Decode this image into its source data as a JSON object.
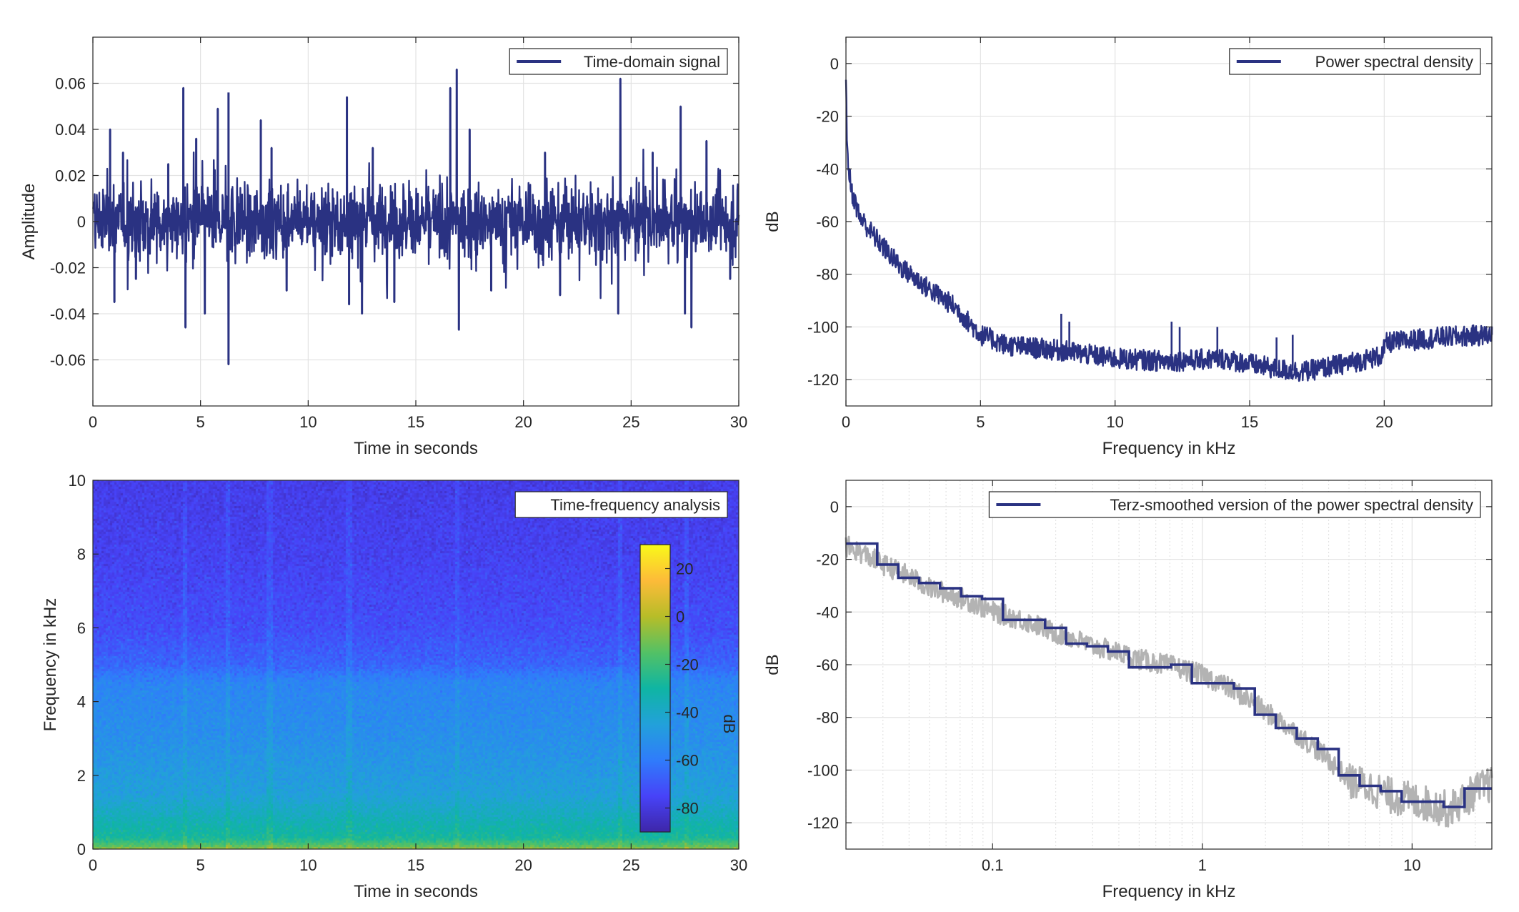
{
  "chart_data": [
    {
      "type": "line",
      "legend": "Time-domain signal",
      "legend_position": "top-right",
      "xlabel": "Time in seconds",
      "ylabel": "Amplitude",
      "xlim": [
        0,
        30
      ],
      "ylim": [
        -0.08,
        0.08
      ],
      "xticks": [
        0,
        5,
        10,
        15,
        20,
        25,
        30
      ],
      "xtick_labels": [
        "0",
        "5",
        "10",
        "15",
        "20",
        "25",
        "30"
      ],
      "yticks": [
        -0.06,
        -0.04,
        -0.02,
        0,
        0.02,
        0.04,
        0.06
      ],
      "ytick_labels": [
        "-0.06",
        "-0.04",
        "-0.02",
        "0",
        "0.02",
        "0.04",
        "0.06"
      ],
      "grid": true,
      "color": "#2a3282",
      "baseline_amplitude": 0.012,
      "peaks": [
        [
          0.8,
          0.04
        ],
        [
          1.0,
          -0.035
        ],
        [
          1.4,
          0.03
        ],
        [
          2.0,
          -0.025
        ],
        [
          3.5,
          0.025
        ],
        [
          4.2,
          0.058
        ],
        [
          4.3,
          -0.046
        ],
        [
          4.8,
          0.036
        ],
        [
          5.2,
          -0.04
        ],
        [
          5.8,
          0.049
        ],
        [
          6.3,
          0.056
        ],
        [
          6.3,
          -0.062
        ],
        [
          7.8,
          0.044
        ],
        [
          8.3,
          0.032
        ],
        [
          9.0,
          -0.03
        ],
        [
          11.8,
          0.054
        ],
        [
          11.9,
          -0.036
        ],
        [
          12.5,
          -0.04
        ],
        [
          13.0,
          0.032
        ],
        [
          14.0,
          -0.035
        ],
        [
          16.6,
          0.058
        ],
        [
          16.9,
          0.066
        ],
        [
          17.0,
          -0.047
        ],
        [
          17.5,
          0.04
        ],
        [
          18.5,
          -0.03
        ],
        [
          21.0,
          0.03
        ],
        [
          21.7,
          -0.032
        ],
        [
          24.5,
          0.062
        ],
        [
          24.4,
          -0.04
        ],
        [
          26.0,
          0.03
        ],
        [
          27.3,
          0.05
        ],
        [
          27.5,
          -0.04
        ],
        [
          27.8,
          -0.046
        ],
        [
          28.5,
          0.035
        ],
        [
          29.6,
          -0.025
        ]
      ]
    },
    {
      "type": "line",
      "legend": "Power spectral density",
      "legend_position": "top-right",
      "xlabel": "Frequency in kHz",
      "ylabel": "dB",
      "xlim": [
        0,
        24
      ],
      "ylim": [
        -130,
        10
      ],
      "xticks": [
        0,
        5,
        10,
        15,
        20
      ],
      "xtick_labels": [
        "0",
        "5",
        "10",
        "15",
        "20"
      ],
      "yticks": [
        0,
        -20,
        -40,
        -60,
        -80,
        -100,
        -120
      ],
      "ytick_labels": [
        "0",
        "-20",
        "-40",
        "-60",
        "-80",
        "-100",
        "-120"
      ],
      "grid": true,
      "color": "#2a3282",
      "trend": {
        "x": [
          0,
          0.05,
          0.2,
          0.5,
          1,
          2,
          3,
          4,
          5,
          6,
          8,
          10,
          12,
          14,
          16,
          17,
          18,
          19,
          19.9,
          20.1,
          22,
          24
        ],
        "y": [
          -6,
          -35,
          -48,
          -58,
          -65,
          -77,
          -85,
          -92,
          -103,
          -107,
          -109,
          -112,
          -113,
          -112,
          -116,
          -117,
          -115,
          -113,
          -111,
          -106,
          -104,
          -103
        ]
      },
      "spikes": [
        [
          8,
          -95
        ],
        [
          8.3,
          -98
        ],
        [
          12.1,
          -98
        ],
        [
          12.4,
          -100
        ],
        [
          13.8,
          -100
        ],
        [
          16,
          -104
        ],
        [
          16.6,
          -103
        ],
        [
          24,
          -100
        ]
      ]
    },
    {
      "type": "heatmap",
      "legend": "Time-frequency analysis",
      "legend_position": "top-right",
      "xlabel": "Time in seconds",
      "ylabel": "Frequency in kHz",
      "xlim": [
        0,
        30
      ],
      "ylim": [
        0,
        10
      ],
      "xticks": [
        0,
        5,
        10,
        15,
        20,
        25,
        30
      ],
      "xtick_labels": [
        "0",
        "5",
        "10",
        "15",
        "20",
        "25",
        "30"
      ],
      "yticks": [
        0,
        2,
        4,
        6,
        8,
        10
      ],
      "ytick_labels": [
        "0",
        "2",
        "4",
        "6",
        "8",
        "10"
      ],
      "colorbar": {
        "label": "dB",
        "range": [
          -90,
          30
        ],
        "ticks": [
          20,
          0,
          -20,
          -40,
          -60,
          -80
        ],
        "tick_labels": [
          "20",
          "0",
          "-20",
          "-40",
          "-60",
          "-80"
        ],
        "colormap": [
          "#3e26a8",
          "#4743f8",
          "#2f7cfb",
          "#22a1da",
          "#0fb5a3",
          "#53c165",
          "#b7bd28",
          "#fdbb39",
          "#f9f919"
        ]
      },
      "level_profile": {
        "freq_khz": [
          0,
          0.1,
          0.3,
          0.8,
          1.5,
          3,
          4.5,
          5,
          6,
          8,
          10
        ],
        "db": [
          -5,
          -15,
          -28,
          -35,
          -45,
          -52,
          -56,
          -66,
          -72,
          -76,
          -78
        ]
      }
    },
    {
      "type": "line",
      "legend": "Terz-smoothed version of the power spectral density",
      "legend_position": "top-right",
      "xlabel": "Frequency in kHz",
      "ylabel": "dB",
      "xscale": "log",
      "xlim": [
        0.02,
        24
      ],
      "ylim": [
        -130,
        10
      ],
      "xticks": [
        0.1,
        1,
        10
      ],
      "xtick_labels": [
        "0.1",
        "1",
        "10"
      ],
      "yticks": [
        0,
        -20,
        -40,
        -60,
        -80,
        -100,
        -120
      ],
      "ytick_labels": [
        "0",
        "-20",
        "-40",
        "-60",
        "-80",
        "-100",
        "-120"
      ],
      "grid": true,
      "series": [
        {
          "role": "smoothed",
          "color": "#2a3282",
          "band_edges_khz": [
            0.02,
            0.0224,
            0.0282,
            0.0355,
            0.0447,
            0.0562,
            0.0708,
            0.0891,
            0.112,
            0.141,
            0.178,
            0.224,
            0.282,
            0.355,
            0.447,
            0.562,
            0.708,
            0.891,
            1.122,
            1.413,
            1.778,
            2.239,
            2.818,
            3.548,
            4.467,
            5.623,
            7.079,
            8.913,
            11.22,
            14.13,
            17.78,
            24
          ],
          "values_db": [
            -14,
            -14,
            -22,
            -27,
            -29,
            -31,
            -34,
            -35,
            -43,
            -43,
            -46,
            -52,
            -53,
            -55,
            -61,
            -61,
            -60,
            -67,
            -67,
            -69,
            -79,
            -84,
            -88,
            -92,
            -102,
            -106,
            -108,
            -112,
            -112,
            -114,
            -107
          ]
        },
        {
          "role": "raw",
          "color": "#b3b3b3",
          "trend": {
            "x": [
              0.02,
              0.03,
              0.05,
              0.1,
              0.2,
              0.3,
              0.5,
              1,
              2,
              3,
              5,
              8,
              12,
              15,
              20,
              24
            ],
            "y": [
              -15,
              -22,
              -31,
              -40,
              -48,
              -53,
              -58,
              -64,
              -78,
              -88,
              -104,
              -110,
              -113,
              -115,
              -108,
              -105
            ]
          }
        }
      ]
    }
  ]
}
